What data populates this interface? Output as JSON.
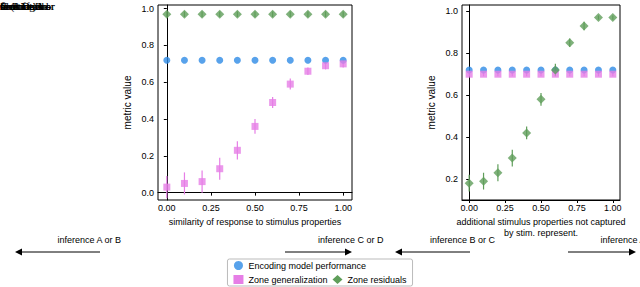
{
  "chart_data": [
    {
      "type": "scatter",
      "xlabel": "similarity of response to stimulus properties",
      "ylabel": "metric value",
      "xlim": [
        -0.05,
        1.05
      ],
      "ylim": [
        -0.04,
        1.02
      ],
      "xticks": [
        {
          "value": 0,
          "label": "0.00"
        },
        {
          "value": 0.25,
          "label": "0.25"
        },
        {
          "value": 0.5,
          "label": "0.50"
        },
        {
          "value": 0.75,
          "label": "0.75"
        },
        {
          "value": 1,
          "label": "1.00"
        }
      ],
      "yticks": [
        {
          "value": 0,
          "label": "0.0"
        },
        {
          "value": 0.2,
          "label": "0.2"
        },
        {
          "value": 0.4,
          "label": "0.4"
        },
        {
          "value": 0.6,
          "label": "0.6"
        },
        {
          "value": 0.8,
          "label": "0.8"
        },
        {
          "value": 1,
          "label": "1.0"
        }
      ],
      "annotations": [
        "inference A or B",
        "inference C or D"
      ],
      "x": [
        0,
        0.1,
        0.2,
        0.3,
        0.4,
        0.5,
        0.6,
        0.7,
        0.8,
        0.9,
        1.0
      ],
      "series": [
        {
          "name": "Encoding model performance",
          "color": "#2e8be6",
          "marker": "circle",
          "values": [
            0.72,
            0.72,
            0.72,
            0.72,
            0.72,
            0.72,
            0.72,
            0.72,
            0.72,
            0.72,
            0.72
          ]
        },
        {
          "name": "Zone generalization",
          "color": "#e67ee6",
          "marker": "square",
          "values": [
            0.03,
            0.05,
            0.06,
            0.13,
            0.23,
            0.36,
            0.49,
            0.59,
            0.66,
            0.69,
            0.7
          ],
          "errors": [
            0.06,
            0.06,
            0.06,
            0.06,
            0.05,
            0.04,
            0.03,
            0.03,
            0.02,
            0.02,
            0.02
          ]
        },
        {
          "name": "Zone residuals",
          "color": "#5f9e5a",
          "marker": "diamond",
          "values": [
            0.97,
            0.97,
            0.97,
            0.97,
            0.97,
            0.97,
            0.97,
            0.97,
            0.97,
            0.97,
            0.97
          ],
          "errors": [
            0.015,
            0.015,
            0.015,
            0.015,
            0.015,
            0.015,
            0.015,
            0.015,
            0.015,
            0.015,
            0.015
          ]
        }
      ]
    },
    {
      "type": "scatter",
      "xlabel": "additional stimulus properties not captured\nby stim. represent.",
      "ylabel": "metric value",
      "xlim": [
        -0.05,
        1.05
      ],
      "ylim": [
        0.1,
        1.03
      ],
      "xticks": [
        {
          "value": 0,
          "label": "0.00"
        },
        {
          "value": 0.25,
          "label": "0.25"
        },
        {
          "value": 0.5,
          "label": "0.50"
        },
        {
          "value": 0.75,
          "label": "0.75"
        },
        {
          "value": 1,
          "label": "1.00"
        }
      ],
      "yticks": [
        {
          "value": 0.2,
          "label": "0.2"
        },
        {
          "value": 0.4,
          "label": "0.4"
        },
        {
          "value": 0.6,
          "label": "0.6"
        },
        {
          "value": 0.8,
          "label": "0.8"
        },
        {
          "value": 1,
          "label": "1.0"
        }
      ],
      "annotations": [
        "inference B or C",
        "inference A or D"
      ],
      "x": [
        0,
        0.1,
        0.2,
        0.3,
        0.4,
        0.5,
        0.6,
        0.7,
        0.8,
        0.9,
        1.0
      ],
      "series": [
        {
          "name": "Encoding model performance",
          "color": "#2e8be6",
          "marker": "circle",
          "values": [
            0.72,
            0.72,
            0.72,
            0.72,
            0.72,
            0.72,
            0.72,
            0.72,
            0.72,
            0.72,
            0.72
          ]
        },
        {
          "name": "Zone generalization",
          "color": "#e67ee6",
          "marker": "square",
          "values": [
            0.7,
            0.7,
            0.7,
            0.7,
            0.7,
            0.7,
            0.7,
            0.7,
            0.7,
            0.7,
            0.7
          ],
          "errors": [
            0.01,
            0.01,
            0.01,
            0.01,
            0.01,
            0.01,
            0.01,
            0.01,
            0.01,
            0.01,
            0.01
          ]
        },
        {
          "name": "Zone residuals",
          "color": "#5f9e5a",
          "marker": "diamond",
          "values": [
            0.18,
            0.19,
            0.23,
            0.3,
            0.42,
            0.58,
            0.72,
            0.85,
            0.93,
            0.97,
            0.97
          ],
          "errors": [
            0.04,
            0.04,
            0.04,
            0.04,
            0.03,
            0.03,
            0.03,
            0.02,
            0.02,
            0.01,
            0.01
          ]
        }
      ]
    }
  ],
  "caption": [
    "Plotting",
    "metric val-",
    "simulations",
    "te (Left) in-",
    "or B from",
    "C or D and",
    "ference B or",
    "ference A or"
  ]
}
